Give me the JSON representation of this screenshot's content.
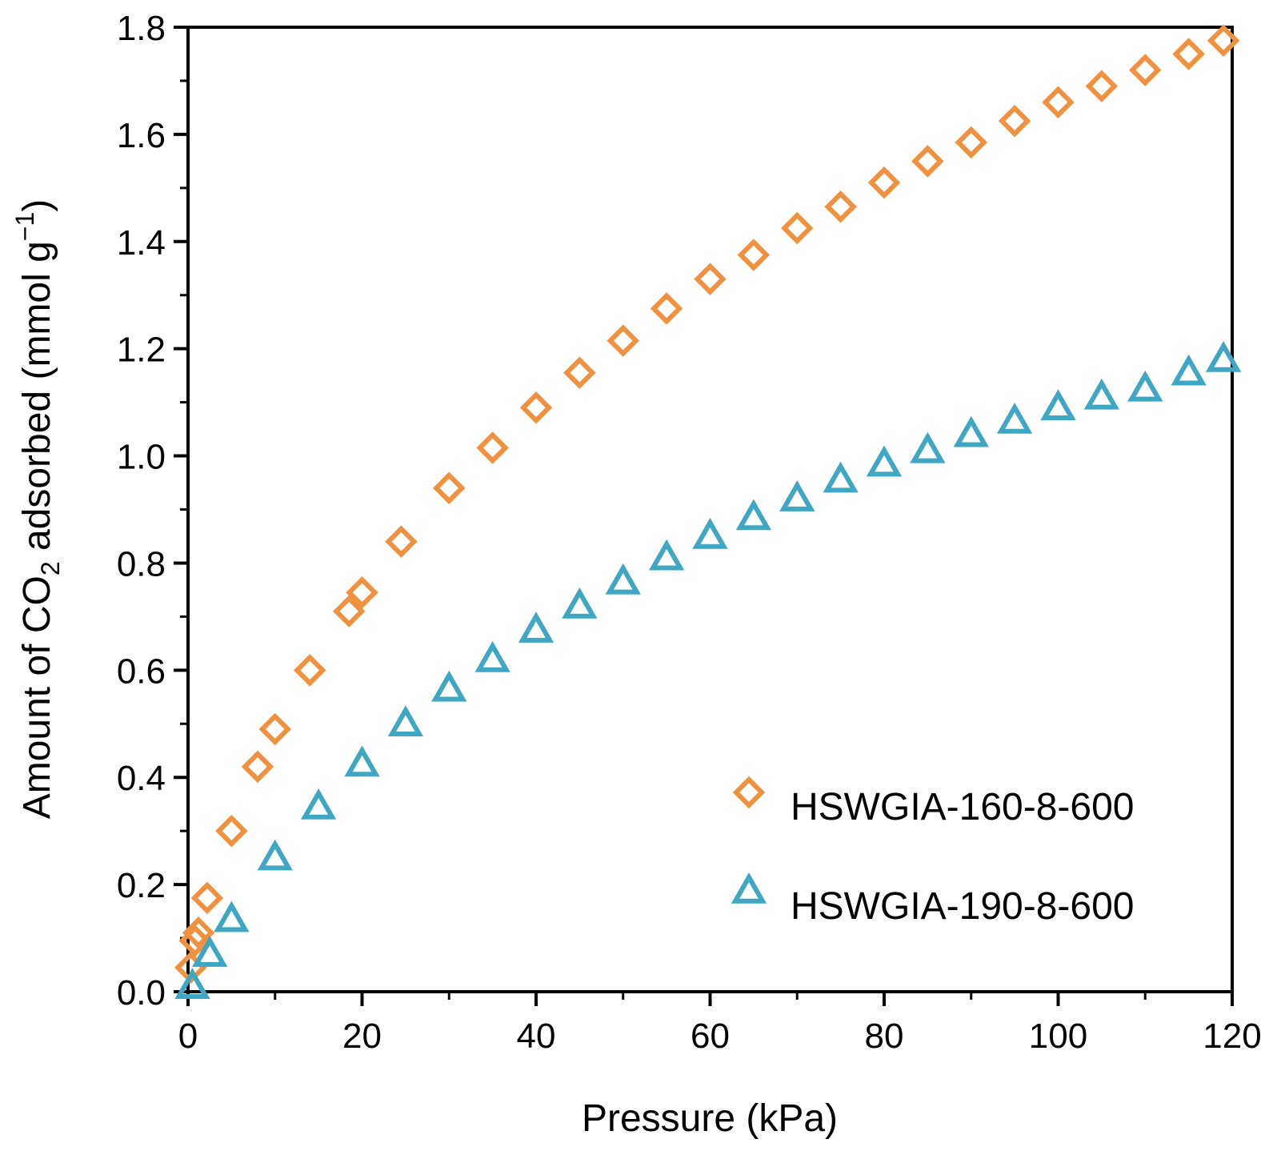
{
  "chart_data": {
    "type": "scatter",
    "title": "",
    "xlabel": "Pressure (kPa)",
    "ylabel": {
      "prefix": "Amount of CO",
      "sub": "2",
      "middle": " adsorbed (mmol g",
      "sup": "−1",
      "suffix": ")"
    },
    "xlim": [
      0,
      120
    ],
    "ylim": [
      0,
      1.8
    ],
    "xticks": [
      0,
      20,
      40,
      60,
      80,
      100,
      120
    ],
    "xtick_labels": [
      "0",
      "20",
      "40",
      "60",
      "80",
      "100",
      "120"
    ],
    "yticks": [
      0,
      0.2,
      0.4,
      0.6,
      0.8,
      1.0,
      1.2,
      1.4,
      1.6,
      1.8
    ],
    "ytick_labels": [
      "0.0",
      "0.2",
      "0.4",
      "0.6",
      "0.8",
      "1.0",
      "1.2",
      "1.4",
      "1.6",
      "1.8"
    ],
    "y_minor_step": 0.1,
    "grid": false,
    "legend_position": "bottom-right",
    "series": [
      {
        "name": "HSWGIA-160-8-600",
        "marker": "diamond",
        "color": "#F0913F",
        "x": [
          0.3,
          0.8,
          1.2,
          2.2,
          5,
          8,
          10,
          14,
          18.5,
          20,
          24.5,
          30,
          35,
          40,
          45,
          50,
          55,
          60,
          65,
          70,
          75,
          80,
          85,
          90,
          95,
          100,
          105,
          110,
          115,
          119
        ],
        "y": [
          0.045,
          0.095,
          0.11,
          0.175,
          0.3,
          0.42,
          0.49,
          0.6,
          0.71,
          0.745,
          0.84,
          0.94,
          1.015,
          1.09,
          1.155,
          1.215,
          1.275,
          1.33,
          1.375,
          1.425,
          1.465,
          1.51,
          1.55,
          1.585,
          1.625,
          1.66,
          1.69,
          1.72,
          1.75,
          1.775
        ]
      },
      {
        "name": "HSWGIA-190-8-600",
        "marker": "triangle",
        "color": "#3FA7C4",
        "x": [
          0.5,
          2.5,
          5,
          10,
          15,
          20,
          25,
          30,
          35,
          40,
          45,
          50,
          55,
          60,
          65,
          70,
          75,
          80,
          85,
          90,
          95,
          100,
          105,
          110,
          115,
          119
        ],
        "y": [
          0.01,
          0.07,
          0.135,
          0.25,
          0.345,
          0.425,
          0.5,
          0.565,
          0.62,
          0.675,
          0.72,
          0.765,
          0.81,
          0.85,
          0.885,
          0.92,
          0.955,
          0.985,
          1.01,
          1.04,
          1.065,
          1.09,
          1.11,
          1.125,
          1.155,
          1.18
        ]
      }
    ]
  }
}
